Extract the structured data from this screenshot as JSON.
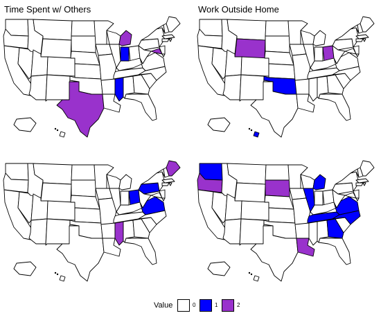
{
  "panels": [
    {
      "title": "Time Spent w/ Others",
      "title2": "",
      "highlights": [
        {
          "state": "MI",
          "value": 2
        },
        {
          "state": "IN",
          "value": 1
        },
        {
          "state": "TX",
          "value": 2
        },
        {
          "state": "MS",
          "value": 1
        },
        {
          "state": "MD",
          "value": 2
        }
      ]
    },
    {
      "title": "Work Outside Home",
      "highlights": [
        {
          "state": "WY",
          "value": 2
        },
        {
          "state": "OK",
          "value": 1
        },
        {
          "state": "OH",
          "value": 2
        },
        {
          "state": "HI",
          "value": 1
        }
      ]
    },
    {
      "title": "",
      "highlights": [
        {
          "state": "OH",
          "value": 1
        },
        {
          "state": "PA",
          "value": 1
        },
        {
          "state": "VA",
          "value": 1
        },
        {
          "state": "ME",
          "value": 2
        },
        {
          "state": "MS",
          "value": 2
        }
      ]
    },
    {
      "title": "",
      "highlights": [
        {
          "state": "WA",
          "value": 1
        },
        {
          "state": "OR",
          "value": 2
        },
        {
          "state": "SD",
          "value": 2
        },
        {
          "state": "MI",
          "value": 1
        },
        {
          "state": "IL",
          "value": 1
        },
        {
          "state": "TN",
          "value": 1
        },
        {
          "state": "NC",
          "value": 1
        },
        {
          "state": "VA",
          "value": 1
        },
        {
          "state": "GA",
          "value": 1
        },
        {
          "state": "LA",
          "value": 2
        }
      ]
    }
  ],
  "legend": {
    "title": "Value",
    "items": [
      {
        "label": "0",
        "color": "#ffffff"
      },
      {
        "label": "1",
        "color": "#0000ff"
      },
      {
        "label": "2",
        "color": "#9932cc"
      }
    ]
  }
}
